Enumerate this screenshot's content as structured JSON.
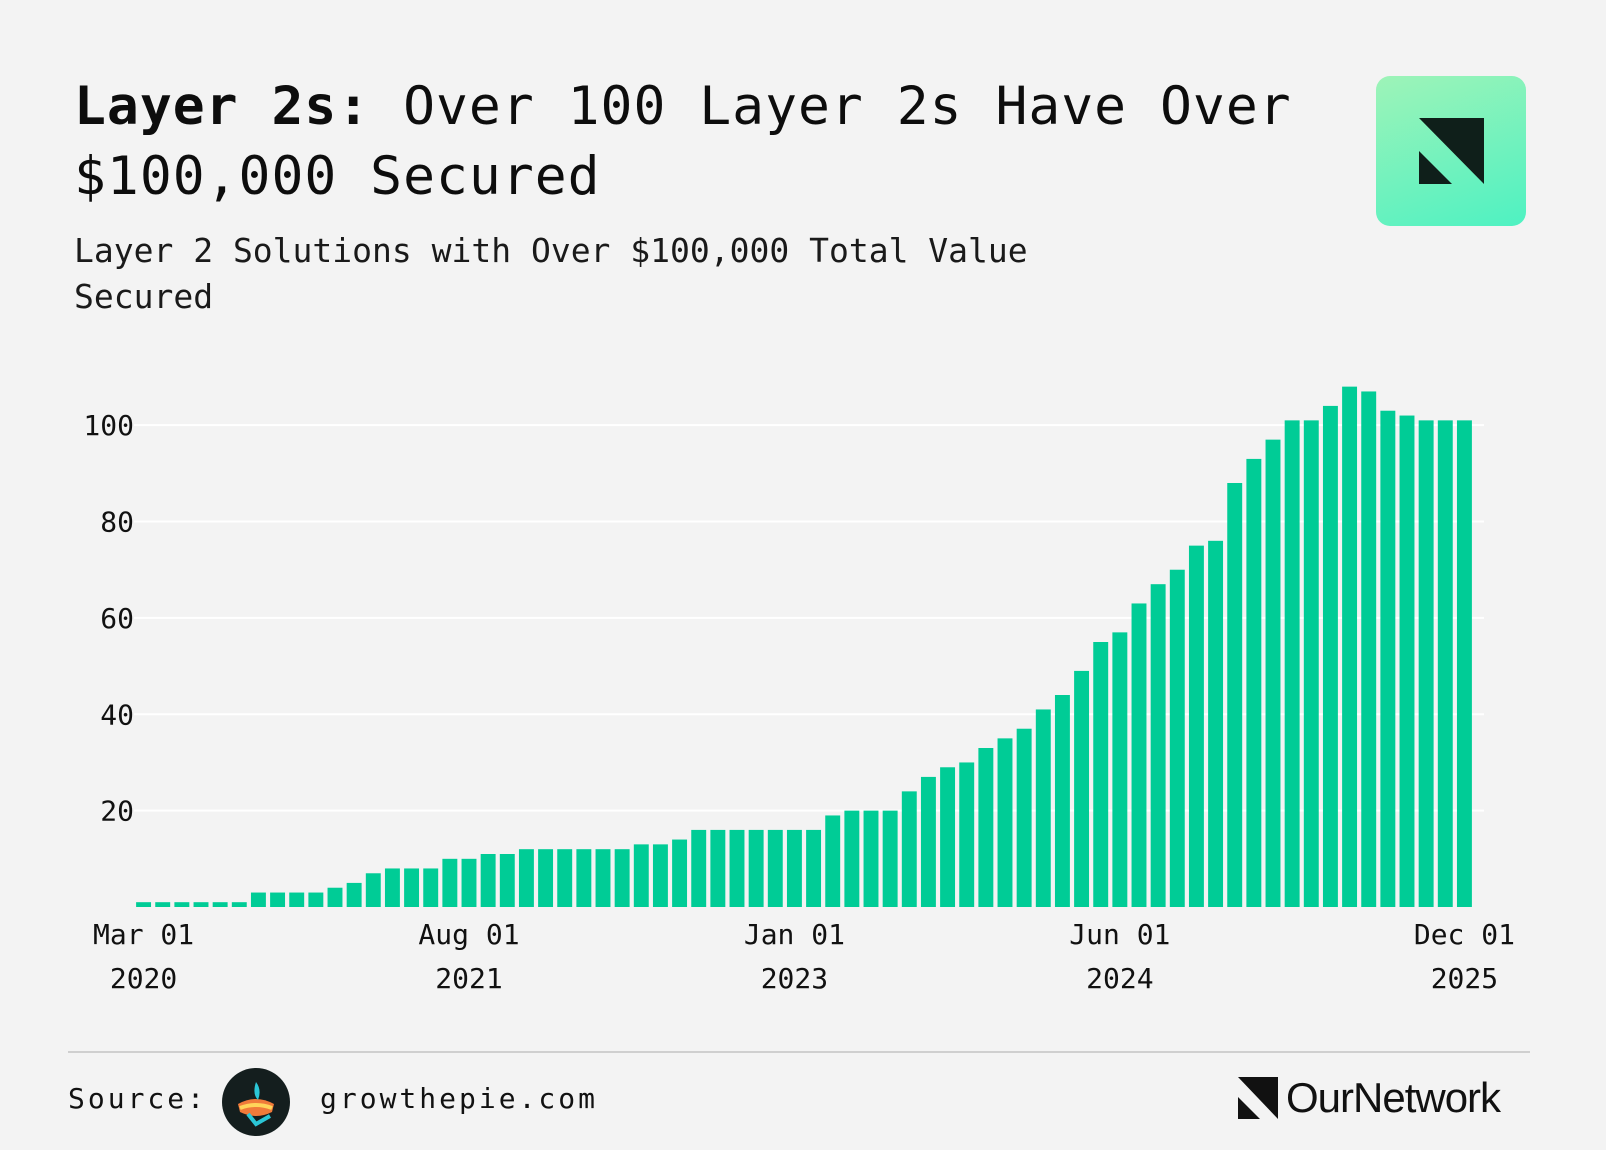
{
  "header": {
    "title_bold": "Layer 2s:",
    "title_rest": " Over 100 Layer 2s Have Over $100,000 Secured",
    "subtitle": "Layer 2 Solutions with Over $100,000 Total Value Secured"
  },
  "colors": {
    "bar": "#00cc96",
    "background": "#f3f3f3",
    "grid": "#ffffff",
    "logo_tile": "#6ff2c0"
  },
  "icons": {
    "corner_logo": "ournetwork-logo-icon",
    "source_logo": "growthepie-logo-icon",
    "brand_logo": "ournetwork-logo-icon"
  },
  "chart_data": {
    "type": "bar",
    "title": "",
    "xlabel": "",
    "ylabel": "",
    "ylim": [
      0,
      110
    ],
    "yticks": [
      20,
      40,
      60,
      80,
      100
    ],
    "grid": true,
    "xtick_labels": [
      {
        "label_month": "Mar 01",
        "label_year": "2020",
        "index": 0
      },
      {
        "label_month": "Aug 01",
        "label_year": "2021",
        "index": 17
      },
      {
        "label_month": "Jan 01",
        "label_year": "2023",
        "index": 34
      },
      {
        "label_month": "Jun 01",
        "label_year": "2024",
        "index": 51
      },
      {
        "label_month": "Dec 01",
        "label_year": "2025",
        "index": 69
      }
    ],
    "categories": [
      "2020-03",
      "2020-04",
      "2020-05",
      "2020-06",
      "2020-07",
      "2020-08",
      "2020-09",
      "2020-10",
      "2020-11",
      "2020-12",
      "2021-01",
      "2021-02",
      "2021-03",
      "2021-04",
      "2021-05",
      "2021-06",
      "2021-07",
      "2021-08",
      "2021-09",
      "2021-10",
      "2021-11",
      "2021-12",
      "2022-01",
      "2022-02",
      "2022-03",
      "2022-04",
      "2022-05",
      "2022-06",
      "2022-07",
      "2022-08",
      "2022-09",
      "2022-10",
      "2022-11",
      "2022-12",
      "2023-01",
      "2023-02",
      "2023-03",
      "2023-04",
      "2023-05",
      "2023-06",
      "2023-07",
      "2023-08",
      "2023-09",
      "2023-10",
      "2023-11",
      "2023-12",
      "2024-01",
      "2024-02",
      "2024-03",
      "2024-04",
      "2024-05",
      "2024-06",
      "2024-07",
      "2024-08",
      "2024-09",
      "2024-10",
      "2024-11",
      "2024-12",
      "2025-01",
      "2025-02",
      "2025-03",
      "2025-04",
      "2025-05",
      "2025-06",
      "2025-07",
      "2025-08",
      "2025-09",
      "2025-10",
      "2025-11",
      "2025-12"
    ],
    "values": [
      1,
      1,
      1,
      1,
      1,
      1,
      3,
      3,
      3,
      3,
      4,
      5,
      7,
      8,
      8,
      8,
      10,
      10,
      11,
      11,
      12,
      12,
      12,
      12,
      12,
      12,
      13,
      13,
      14,
      16,
      16,
      16,
      16,
      16,
      16,
      16,
      19,
      20,
      20,
      20,
      24,
      27,
      29,
      30,
      33,
      35,
      37,
      41,
      44,
      49,
      55,
      57,
      63,
      67,
      70,
      75,
      76,
      88,
      93,
      97,
      101,
      101,
      104,
      108,
      107,
      103,
      102,
      101,
      101,
      101
    ]
  },
  "footer": {
    "source_label": "Source:",
    "source_url": "growthepie.com",
    "brand_name": "OurNetwork"
  }
}
